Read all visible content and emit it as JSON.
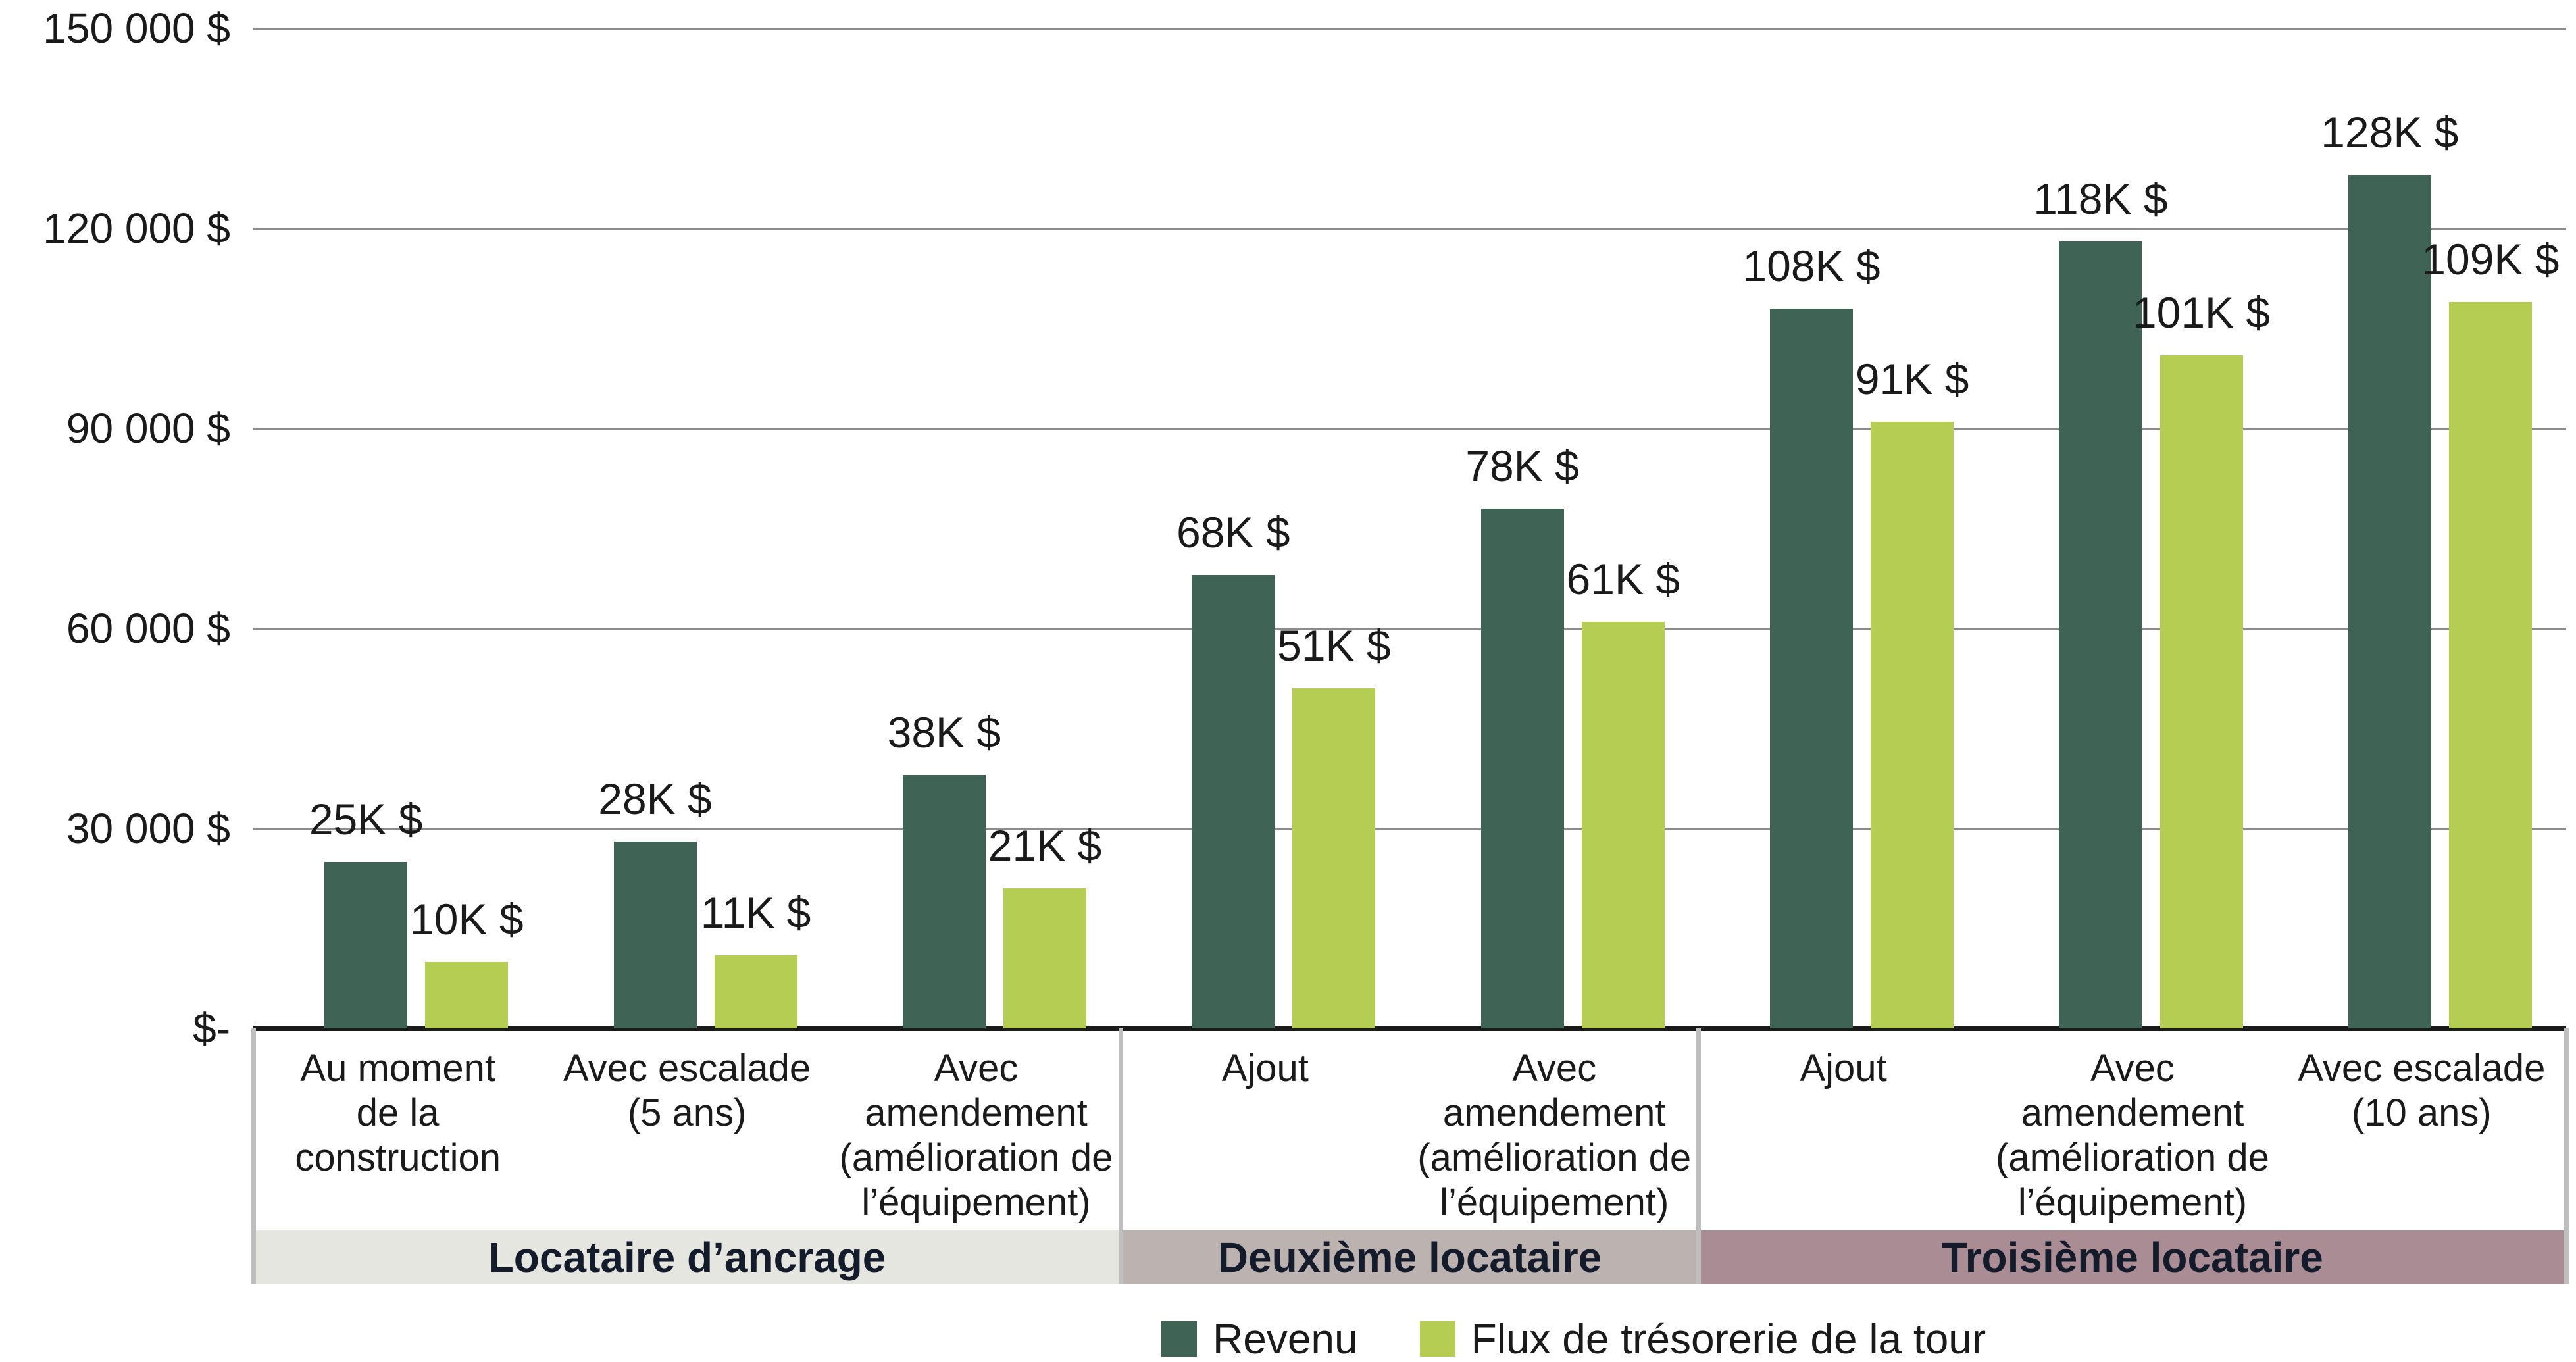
{
  "chart_data": {
    "type": "bar",
    "y_axis": {
      "min": 0,
      "max": 150000,
      "gridline_interval": 30000,
      "grid": true,
      "ticks": [
        {
          "label": "150 000 $",
          "value": 150000
        },
        {
          "label": "120 000 $",
          "value": 120000
        },
        {
          "label": "90 000 $",
          "value": 90000
        },
        {
          "label": "60 000 $",
          "value": 60000
        },
        {
          "label": "30 000 $",
          "value": 30000
        },
        {
          "label": "$-",
          "value": 0
        }
      ]
    },
    "categories": [
      "Au moment\nde la\nconstruction",
      "Avec escalade\n(5 ans)",
      "Avec\namendement\n(amélioration de\nl’équipement)",
      "Ajout",
      "Avec\namendement\n(amélioration de\nl’équipement)",
      "Ajout",
      "Avec\namendement\n(amélioration de\nl’équipement)",
      "Avec escalade\n(10 ans)"
    ],
    "groups": [
      {
        "label": "Locataire d’ancrage",
        "span": 3,
        "band_color": "#e5e6e0"
      },
      {
        "label": "Deuxième locataire",
        "span": 2,
        "band_color": "#bcb3b0"
      },
      {
        "label": "Troisième locataire",
        "span": 3,
        "band_color": "#aa8c94"
      }
    ],
    "series": [
      {
        "name": "Revenu",
        "color": "#3f6456",
        "values": [
          25000,
          28000,
          38000,
          68000,
          78000,
          108000,
          118000,
          128000
        ],
        "value_labels": [
          "25K $",
          "28K $",
          "38K $",
          "68K $",
          "78K $",
          "108K $",
          "118K $",
          "128K $"
        ]
      },
      {
        "name": "Flux de trésorerie de la tour",
        "color": "#b5cd53",
        "values": [
          10000,
          11000,
          21000,
          51000,
          61000,
          91000,
          101000,
          109000
        ],
        "value_labels": [
          "10K $",
          "11K $",
          "21K $",
          "51K $",
          "61K $",
          "91K $",
          "101K $",
          "109K $"
        ]
      }
    ],
    "legend_position": "bottom",
    "colors": {
      "gridline": "#8c8c8c",
      "axis": "#1a1a1a",
      "separator": "#bfbfbf",
      "band_text": "#141b2a",
      "text": "#1a1a1a",
      "background": "#ffffff"
    }
  }
}
